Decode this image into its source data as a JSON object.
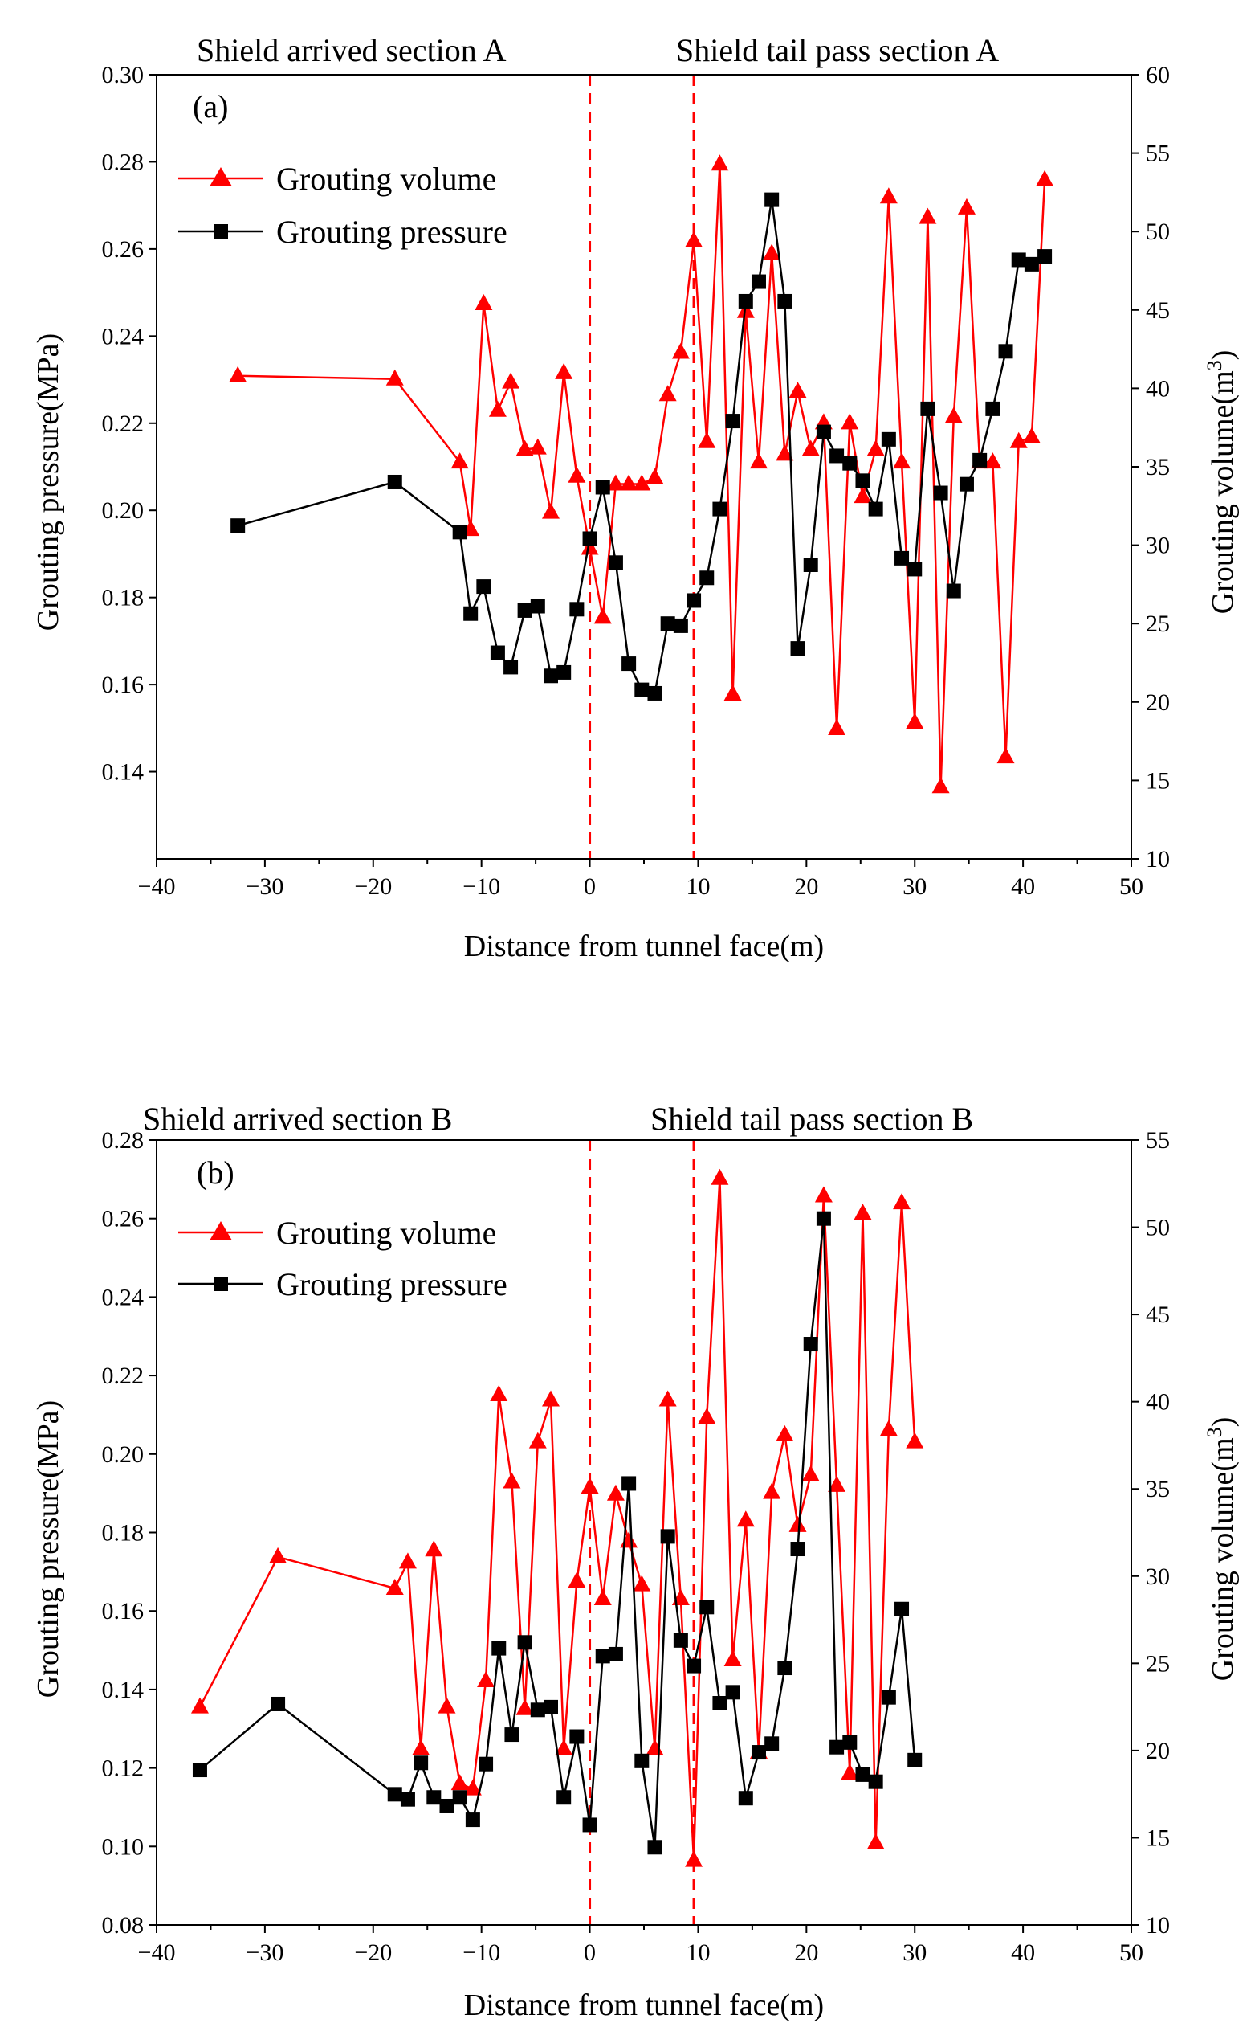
{
  "chart_data": [
    {
      "id": "a",
      "type": "line",
      "panel_label": "(a)",
      "header_left": "Shield arrived section A",
      "header_right": "Shield tail pass section A",
      "xlabel": "Distance from tunnel face(m)",
      "ylabel_left": "Grouting pressure(MPa)",
      "ylabel_right_base": "Grouting volume(m",
      "ylabel_right_sup": "3",
      "ylabel_right_close": ")",
      "xlim": [
        -40,
        50
      ],
      "xticks": [
        -40,
        -30,
        -20,
        -10,
        0,
        10,
        20,
        30,
        40,
        50
      ],
      "xtick_labels": [
        "−40",
        "−30",
        "−20",
        "−10",
        "0",
        "10",
        "20",
        "30",
        "40",
        "50"
      ],
      "ylim_left": [
        0.12,
        0.3
      ],
      "yticks_left": [
        0.14,
        0.16,
        0.18,
        0.2,
        0.22,
        0.24,
        0.26,
        0.28,
        0.3
      ],
      "ytick_labels_left": [
        "0.14",
        "0.16",
        "0.18",
        "0.20",
        "0.22",
        "0.24",
        "0.26",
        "0.28",
        "0.30"
      ],
      "ylim_right": [
        10,
        60
      ],
      "yticks_right": [
        10,
        15,
        20,
        25,
        30,
        35,
        40,
        45,
        50,
        55,
        60
      ],
      "ytick_labels_right": [
        "10",
        "15",
        "20",
        "25",
        "30",
        "35",
        "40",
        "45",
        "50",
        "55",
        "60"
      ],
      "vlines": [
        0,
        9.6
      ],
      "series": [
        {
          "name": "Grouting volume",
          "axis": "right",
          "color": "#ff0000",
          "marker": "triangle",
          "x": [
            -32.5,
            -18,
            -12,
            -11,
            -9.8,
            -8.5,
            -7.3,
            -6,
            -4.8,
            -3.6,
            -2.4,
            -1.2,
            0,
            1.2,
            2.4,
            3.6,
            4.8,
            6,
            7.2,
            8.4,
            9.6,
            10.8,
            12,
            13.2,
            14.4,
            15.6,
            16.8,
            18,
            19.2,
            20.4,
            21.6,
            22.8,
            24,
            25.2,
            26.4,
            27.6,
            28.8,
            30,
            31.2,
            32.4,
            33.6,
            34.8,
            36,
            37.2,
            38.4,
            39.6,
            40.8,
            42
          ],
          "values": [
            40.8,
            40.6,
            35.3,
            31,
            45.4,
            38.6,
            40.4,
            36.1,
            36.2,
            32.1,
            41,
            34.4,
            29.8,
            25.4,
            33.9,
            33.9,
            33.9,
            34.3,
            39.6,
            42.3,
            49.4,
            36.6,
            54.3,
            20.5,
            44.9,
            35.3,
            48.6,
            35.8,
            39.8,
            36.1,
            37.8,
            18.3,
            37.8,
            33.1,
            36.1,
            52.2,
            35.3,
            18.7,
            50.9,
            14.6,
            38.2,
            51.5,
            35.3,
            35.3,
            16.5,
            36.6,
            36.9,
            53.3
          ]
        },
        {
          "name": "Grouting pressure",
          "axis": "left",
          "color": "#000000",
          "marker": "square",
          "x": [
            -32.5,
            -18,
            -12,
            -11,
            -9.8,
            -8.5,
            -7.3,
            -6,
            -4.8,
            -3.6,
            -2.4,
            -1.2,
            0,
            1.2,
            2.4,
            3.6,
            4.8,
            6,
            7.2,
            8.4,
            9.6,
            10.8,
            12,
            13.2,
            14.4,
            15.6,
            16.8,
            18,
            19.2,
            20.4,
            21.6,
            22.8,
            24,
            25.2,
            26.4,
            27.6,
            28.8,
            30,
            31.2,
            32.4,
            33.6,
            34.8,
            36,
            37.2,
            38.4,
            39.6,
            40.8,
            42
          ],
          "values": [
            0.1965,
            0.2065,
            0.195,
            0.1763,
            0.1825,
            0.1673,
            0.164,
            0.177,
            0.178,
            0.162,
            0.1628,
            0.1773,
            0.1935,
            0.2053,
            0.188,
            0.1648,
            0.1588,
            0.158,
            0.174,
            0.1735,
            0.1793,
            0.1845,
            0.2003,
            0.2205,
            0.248,
            0.2525,
            0.2713,
            0.248,
            0.1683,
            0.1875,
            0.218,
            0.2125,
            0.2108,
            0.2068,
            0.2003,
            0.2163,
            0.189,
            0.1865,
            0.2233,
            0.204,
            0.1815,
            0.206,
            0.2115,
            0.2233,
            0.2365,
            0.2575,
            0.2565,
            0.2583
          ]
        }
      ]
    },
    {
      "id": "b",
      "type": "line",
      "panel_label": "(b)",
      "header_left": "Shield arrived section B",
      "header_right": "Shield tail pass section B",
      "xlabel": "Distance from tunnel face(m)",
      "ylabel_left": "Grouting pressure(MPa)",
      "ylabel_right_base": "Grouting volume(m",
      "ylabel_right_sup": "3",
      "ylabel_right_close": ")",
      "xlim": [
        -40,
        50
      ],
      "xticks": [
        -40,
        -30,
        -20,
        -10,
        0,
        10,
        20,
        30,
        40,
        50
      ],
      "xtick_labels": [
        "−40",
        "−30",
        "−20",
        "−10",
        "0",
        "10",
        "20",
        "30",
        "40",
        "50"
      ],
      "ylim_left": [
        0.08,
        0.28
      ],
      "yticks_left": [
        0.08,
        0.1,
        0.12,
        0.14,
        0.16,
        0.18,
        0.2,
        0.22,
        0.24,
        0.26,
        0.28
      ],
      "ytick_labels_left": [
        "0.08",
        "0.10",
        "0.12",
        "0.14",
        "0.16",
        "0.18",
        "0.20",
        "0.22",
        "0.24",
        "0.26",
        "0.28"
      ],
      "ylim_right": [
        10,
        55
      ],
      "yticks_right": [
        10,
        15,
        20,
        25,
        30,
        35,
        40,
        45,
        50,
        55
      ],
      "ytick_labels_right": [
        "10",
        "15",
        "20",
        "25",
        "30",
        "35",
        "40",
        "45",
        "50",
        "55"
      ],
      "vlines": [
        0,
        9.6
      ],
      "series": [
        {
          "name": "Grouting volume",
          "axis": "right",
          "color": "#ff0000",
          "marker": "triangle",
          "x": [
            -36,
            -28.8,
            -18,
            -16.8,
            -15.6,
            -14.4,
            -13.2,
            -12,
            -10.8,
            -9.6,
            -8.4,
            -7.2,
            -6,
            -4.8,
            -3.6,
            -2.4,
            -1.2,
            0,
            1.2,
            2.4,
            3.6,
            4.8,
            6,
            7.2,
            8.4,
            9.6,
            10.8,
            12,
            13.2,
            14.4,
            15.6,
            16.8,
            18,
            19.2,
            20.4,
            21.6,
            22.8,
            24,
            25.2,
            26.4,
            27.6,
            28.8,
            30
          ],
          "values": [
            22.5,
            31.1,
            29.3,
            30.8,
            20.1,
            31.5,
            22.5,
            18.1,
            17.8,
            24,
            40.4,
            35.4,
            22.4,
            37.7,
            40.1,
            20.1,
            29.7,
            35.1,
            28.7,
            34.7,
            32,
            29.5,
            20.1,
            40.1,
            28.7,
            13.7,
            39.1,
            52.8,
            25.2,
            33.2,
            19.9,
            34.8,
            38.1,
            32.9,
            35.8,
            51.8,
            35.2,
            18.7,
            50.8,
            14.7,
            38.4,
            51.4,
            37.7
          ]
        },
        {
          "name": "Grouting pressure",
          "axis": "left",
          "color": "#000000",
          "marker": "square",
          "x": [
            -36,
            -28.8,
            -18,
            -16.8,
            -15.6,
            -14.4,
            -13.2,
            -12,
            -10.8,
            -9.6,
            -8.4,
            -7.2,
            -6,
            -4.8,
            -3.6,
            -2.4,
            -1.2,
            0,
            1.2,
            2.4,
            3.6,
            4.8,
            6,
            7.2,
            8.4,
            9.6,
            10.8,
            12,
            13.2,
            14.4,
            15.6,
            16.8,
            18,
            19.2,
            20.4,
            21.6,
            22.8,
            24,
            25.2,
            26.4,
            27.6,
            28.8,
            30
          ],
          "values": [
            0.1195,
            0.1363,
            0.1133,
            0.112,
            0.1213,
            0.1125,
            0.1103,
            0.1125,
            0.1068,
            0.121,
            0.1505,
            0.1285,
            0.152,
            0.1348,
            0.1355,
            0.1125,
            0.128,
            0.1055,
            0.1485,
            0.149,
            0.1925,
            0.1218,
            0.0998,
            0.179,
            0.1525,
            0.146,
            0.161,
            0.1365,
            0.1393,
            0.1123,
            0.124,
            0.1262,
            0.1455,
            0.1758,
            0.228,
            0.26,
            0.1253,
            0.1265,
            0.1183,
            0.1165,
            0.138,
            0.1605,
            0.122
          ]
        }
      ]
    }
  ]
}
